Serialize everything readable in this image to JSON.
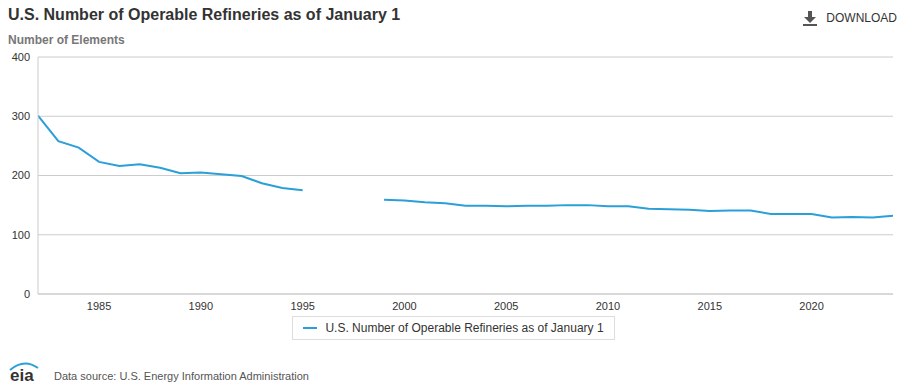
{
  "chart_data": {
    "type": "line",
    "title": "U.S. Number of Operable Refineries as of January 1",
    "subtitle": "Number of Elements",
    "download_label": "DOWNLOAD",
    "source": "Data source: U.S. Energy Information Administration",
    "logo": "eia",
    "x": [
      1982,
      1983,
      1984,
      1985,
      1986,
      1987,
      1988,
      1989,
      1990,
      1991,
      1992,
      1993,
      1994,
      1995,
      1996,
      1997,
      1998,
      1999,
      2000,
      2001,
      2002,
      2003,
      2004,
      2005,
      2006,
      2007,
      2008,
      2009,
      2010,
      2011,
      2012,
      2013,
      2014,
      2015,
      2016,
      2017,
      2018,
      2019,
      2020,
      2021,
      2022,
      2023,
      2024
    ],
    "series": [
      {
        "name": "U.S. Number of Operable Refineries as of January 1",
        "color": "#2a9fd8",
        "values": [
          301,
          258,
          247,
          223,
          216,
          219,
          213,
          204,
          205,
          202,
          199,
          187,
          179,
          175,
          null,
          null,
          null,
          159,
          158,
          155,
          153,
          149,
          149,
          148,
          149,
          149,
          150,
          150,
          148,
          148,
          144,
          143,
          142,
          140,
          141,
          141,
          135,
          135,
          135,
          129,
          130,
          129,
          132
        ]
      }
    ],
    "xlim": [
      1982,
      2024
    ],
    "xticks": [
      1985,
      1990,
      1995,
      2000,
      2005,
      2010,
      2015,
      2020
    ],
    "ylim": [
      0,
      400
    ],
    "yticks": [
      0,
      100,
      200,
      300,
      400
    ],
    "grid": true,
    "legend": "bottom"
  }
}
